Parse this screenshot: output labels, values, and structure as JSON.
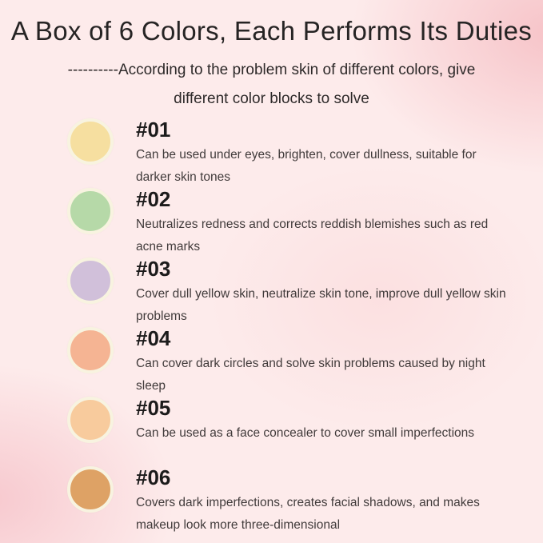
{
  "page": {
    "title": "A Box of 6 Colors, Each Performs Its Duties",
    "subtitle_line1": "----------According to the problem skin of different colors, give",
    "subtitle_line2": "different color blocks to solve"
  },
  "colors": {
    "background_base": "#fdebeb",
    "background_accent_top_right": "#f6c1c6",
    "background_accent_bottom_left": "#f7c7cd",
    "swatch_ring": "#f8f3e0",
    "title_text": "#262424",
    "body_text": "#413b3b"
  },
  "items": [
    {
      "id": "#01",
      "swatch_name": "pale-yellow-swatch",
      "swatch_color": "#f6dfa0",
      "description": "Can be used under eyes, brighten, cover dullness, suitable for darker skin tones"
    },
    {
      "id": "#02",
      "swatch_name": "light-green-swatch",
      "swatch_color": "#b6d9a8",
      "description": "Neutralizes redness and corrects reddish blemishes such as red acne marks"
    },
    {
      "id": "#03",
      "swatch_name": "lilac-purple-swatch",
      "swatch_color": "#d1c0da",
      "description": "Cover dull yellow skin, neutralize skin tone, improve dull yellow skin problems"
    },
    {
      "id": "#04",
      "swatch_name": "salmon-swatch",
      "swatch_color": "#f5b493",
      "description": "Can cover dark circles and solve skin problems caused by night sleep"
    },
    {
      "id": "#05",
      "swatch_name": "light-peach-swatch",
      "swatch_color": "#f8cb9d",
      "description": "Can be used as a face concealer to cover small imperfections"
    },
    {
      "id": "#06",
      "swatch_name": "tan-orange-swatch",
      "swatch_color": "#dea265",
      "description": "Covers dark imperfections, creates facial shadows, and makes makeup look more three-dimensional"
    }
  ]
}
